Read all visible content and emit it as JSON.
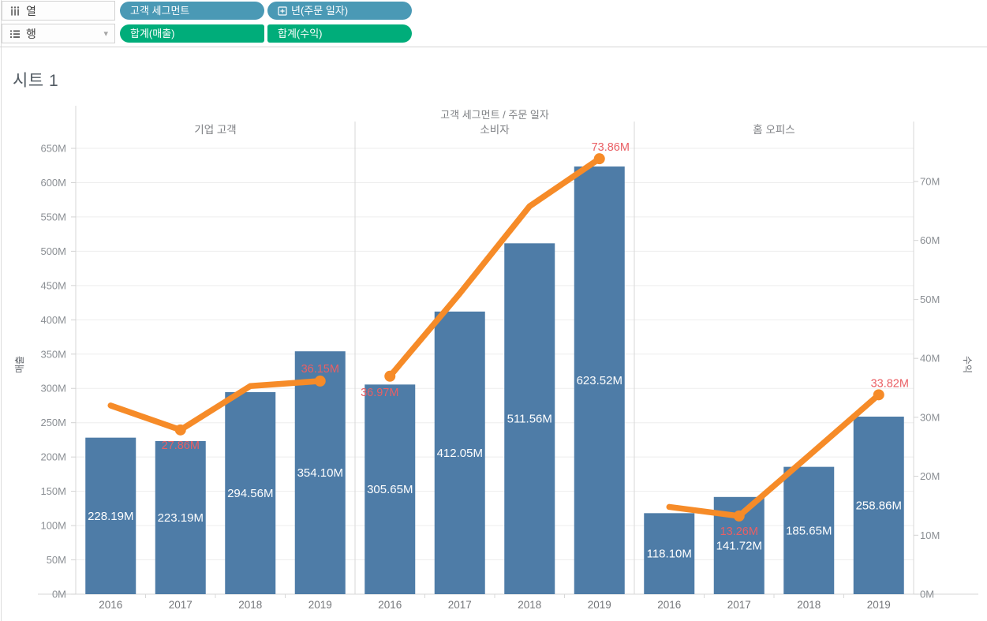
{
  "sheet": {
    "title": "시트 1"
  },
  "shelves": {
    "columns": {
      "label": "열",
      "pills": [
        {
          "text": "고객 세그먼트",
          "type": "dimension"
        },
        {
          "text": "년(주문 일자)",
          "type": "dimension",
          "icon": "plus-box"
        }
      ]
    },
    "rows": {
      "label": "행",
      "pills": [
        {
          "text": "합계(매출)",
          "type": "measure"
        },
        {
          "text": "합계(수익)",
          "type": "measure"
        }
      ]
    }
  },
  "colors": {
    "bar": "#4e7ca7",
    "line": "#f68b28",
    "line_label": "#ea5f64",
    "bar_label": "#ffffff",
    "dimension_pill": "#4a99b5",
    "measure_pill": "#00ad7a",
    "grid": "#ededed",
    "frame": "#d7d7d7",
    "tick_label": "#8b8f94",
    "year_label": "#75777b",
    "header_text": "#7d7f83"
  },
  "chart_data": {
    "type": "bar+line",
    "title": "고객 세그먼트 / 주문 일자",
    "x_categories": [
      "2016",
      "2017",
      "2018",
      "2019"
    ],
    "left_axis": {
      "title": "매출",
      "unit": "M",
      "min": 0,
      "max": 650,
      "step": 50,
      "series_name": "합계(매출)"
    },
    "right_axis": {
      "title": "수익",
      "unit": "M",
      "min": 0,
      "max": 70,
      "step": 10,
      "series_name": "합계(수익)"
    },
    "grid": "horizontal",
    "panels": [
      {
        "name": "기업 고객",
        "sales": [
          228.19,
          223.19,
          294.56,
          354.1
        ],
        "profit": [
          32.0,
          27.86,
          35.3,
          36.15
        ],
        "profit_labels": [
          null,
          "27.86M",
          null,
          "36.15M"
        ],
        "profit_label_pos": [
          null,
          "below",
          null,
          "above"
        ]
      },
      {
        "name": "소비자",
        "sales": [
          305.65,
          412.05,
          511.56,
          623.52
        ],
        "profit": [
          36.97,
          51.0,
          65.8,
          73.86
        ],
        "profit_labels": [
          "36.97M",
          null,
          null,
          "73.86M"
        ],
        "profit_label_pos": [
          "below-left",
          null,
          null,
          "above-right"
        ]
      },
      {
        "name": "홈 오피스",
        "sales": [
          118.1,
          141.72,
          185.65,
          258.86
        ],
        "profit": [
          14.8,
          13.26,
          23.5,
          33.82
        ],
        "profit_labels": [
          null,
          "13.26M",
          null,
          "33.82M"
        ],
        "profit_label_pos": [
          null,
          "below",
          null,
          "above-right"
        ]
      }
    ]
  }
}
